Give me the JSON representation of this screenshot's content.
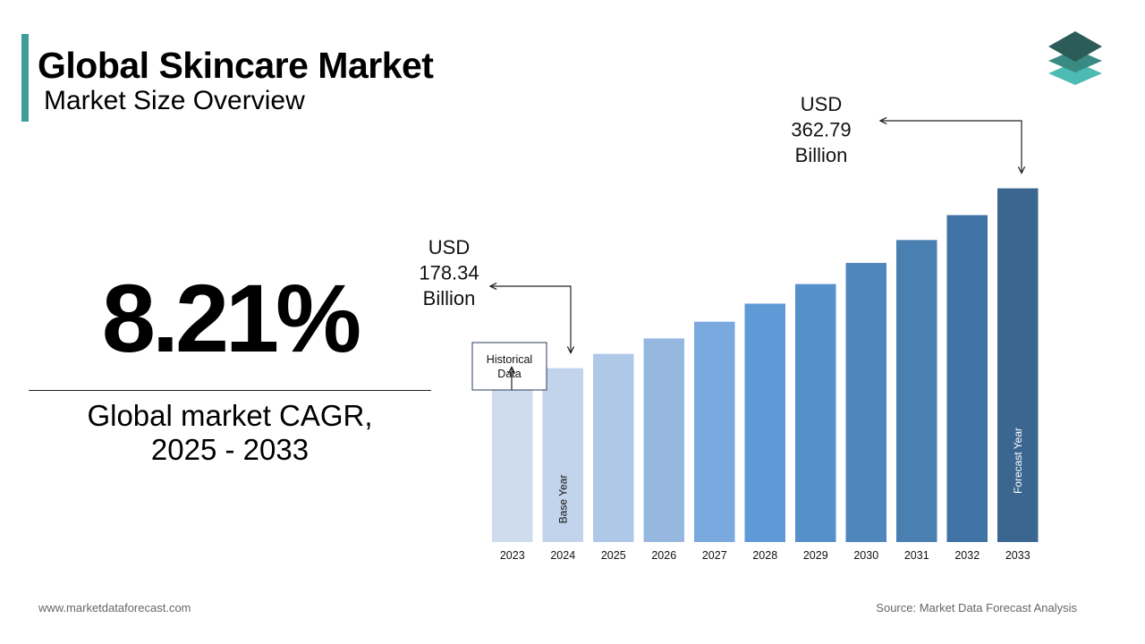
{
  "header": {
    "title": "Global Skincare Market",
    "subtitle": "Market Size Overview"
  },
  "kpi": {
    "value": "8.21%",
    "label_line1": "Global market CAGR,",
    "label_line2": "2025 - 2033"
  },
  "footer": {
    "url": "www.marketdataforecast.com",
    "source": "Source: Market Data Forecast Analysis"
  },
  "logo": {
    "icon": "stacked-layers-icon",
    "colors": [
      "#2b5c58",
      "#3a8a84",
      "#4dbab4"
    ]
  },
  "chart_data": {
    "type": "bar",
    "categories": [
      "2023",
      "2024",
      "2025",
      "2026",
      "2027",
      "2028",
      "2029",
      "2030",
      "2031",
      "2032",
      "2033"
    ],
    "values": [
      164.8,
      178.34,
      193.0,
      208.8,
      226.0,
      244.5,
      264.6,
      286.3,
      309.8,
      335.3,
      362.79
    ],
    "colors": [
      "#cfdcee",
      "#c2d4ec",
      "#afc8e7",
      "#96b8e0",
      "#7aa9df",
      "#5f9ad7",
      "#5690cb",
      "#4f86bb",
      "#4a7fb2",
      "#4072a5",
      "#3a6690"
    ],
    "ylim": [
      0,
      400
    ],
    "bar_labels": {
      "2024": "Base Year",
      "2033": "Forecast Year"
    },
    "annotations": [
      {
        "category": "2024",
        "lines": [
          "USD",
          "178.34",
          "Billion"
        ]
      },
      {
        "category": "2033",
        "lines": [
          "USD",
          "362.79",
          "Billion"
        ]
      }
    ],
    "historical_box": {
      "category": "2023",
      "lines": [
        "Historical",
        "Data"
      ]
    }
  }
}
